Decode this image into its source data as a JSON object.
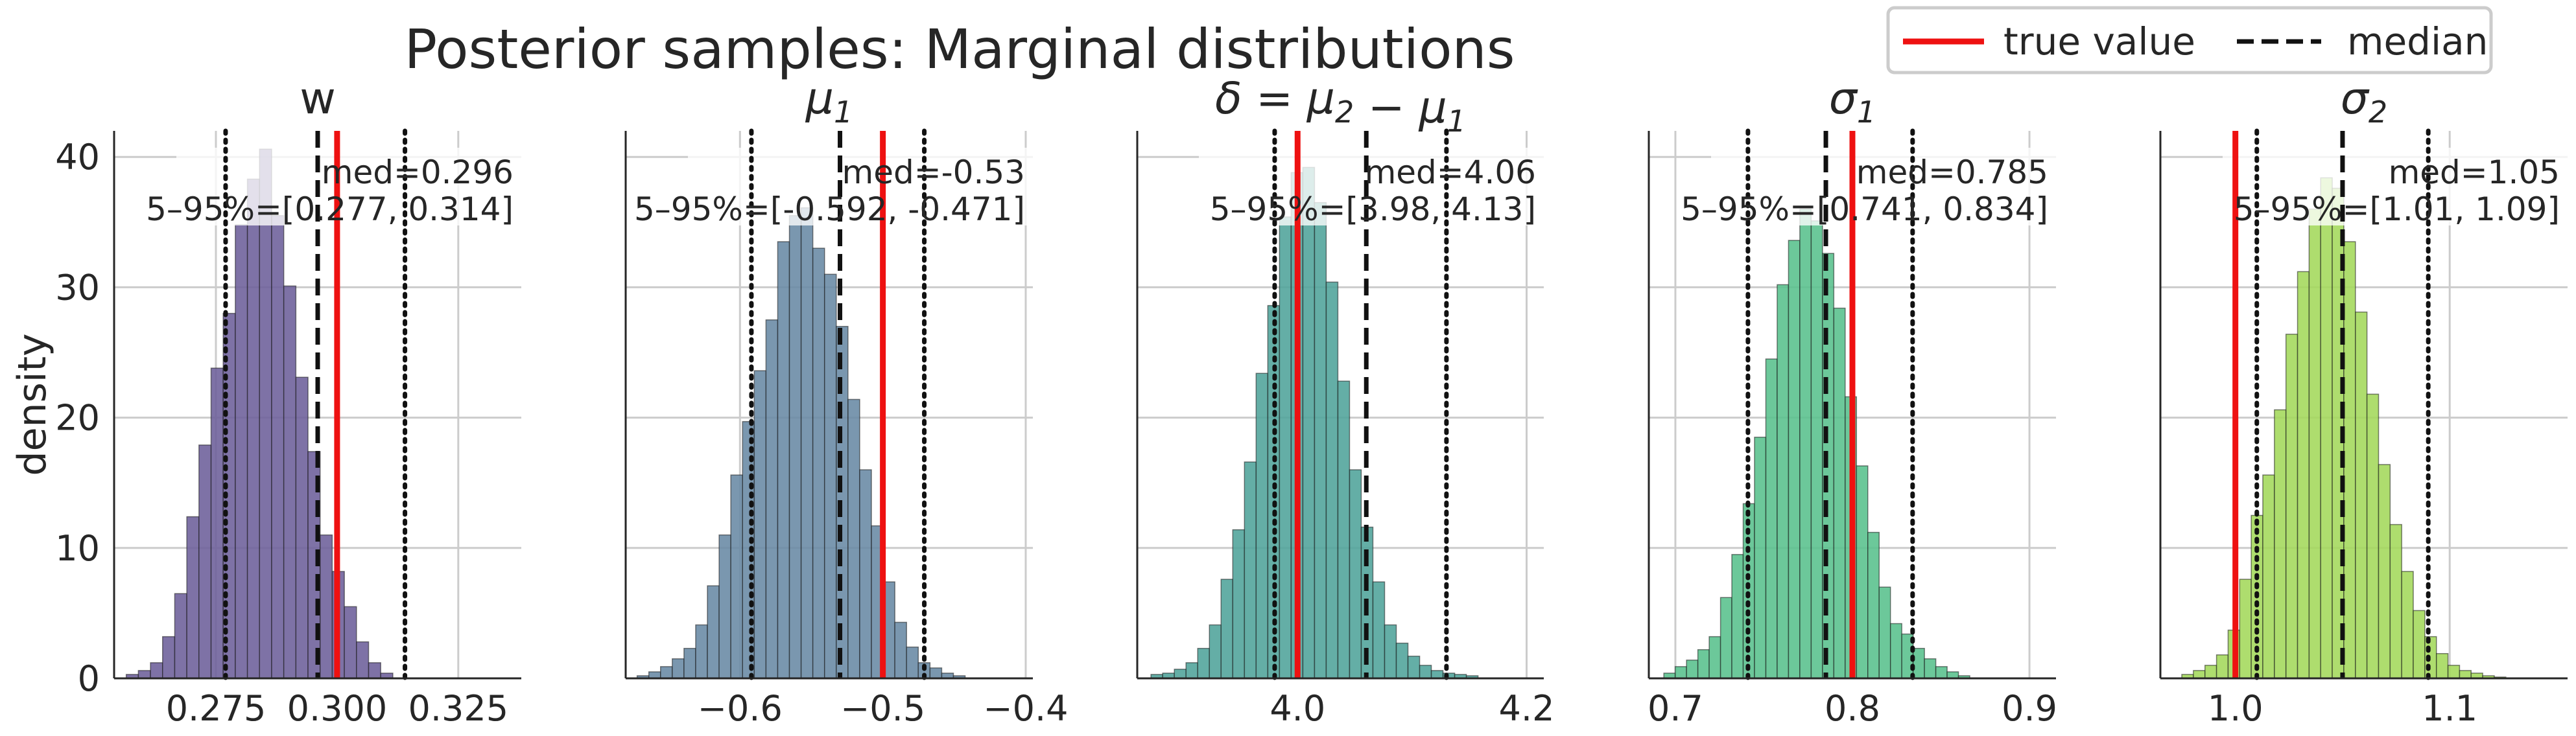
{
  "chart_data": {
    "type": "bar",
    "title": "Posterior samples: Marginal distributions",
    "ylabel": "density",
    "legend": {
      "placement": "top-right",
      "entries": [
        {
          "label": "true value",
          "color": "#ee1111",
          "style": "solid"
        },
        {
          "label": "median",
          "color": "#111111",
          "style": "dashed"
        }
      ]
    },
    "panels": [
      {
        "name": "w",
        "subtitle": "w",
        "color": "#6c5f9a",
        "xlim": [
          0.254,
          0.338
        ],
        "xticks": [
          0.275,
          0.3,
          0.325
        ],
        "xtick_labels": [
          "0.275",
          "0.300",
          "0.325"
        ],
        "true_value": 0.3,
        "median": 0.296,
        "q05": 0.277,
        "q95": 0.314,
        "annotation_med": "med=0.296",
        "annotation_range": "5–95%=[0.277, 0.314]",
        "bin_start": 0.2565,
        "bin_width": 0.0025,
        "densities": [
          0.3,
          0.6,
          1.2,
          3.2,
          6.5,
          12.4,
          17.9,
          23.8,
          28.0,
          34.8,
          38.3,
          40.6,
          35.5,
          30.1,
          23.1,
          17.4,
          11.0,
          8.2,
          5.5,
          2.8,
          1.2,
          0.4
        ]
      },
      {
        "name": "mu1",
        "subtitle": "μ",
        "subtitle_sub": "1",
        "color": "#6889a4",
        "xlim": [
          -0.68,
          -0.395
        ],
        "xticks": [
          -0.6,
          -0.5,
          -0.4
        ],
        "xtick_labels": [
          "−0.6",
          "−0.5",
          "−0.4"
        ],
        "true_value": -0.5,
        "median": -0.53,
        "q05": -0.592,
        "q95": -0.471,
        "annotation_med": "med=-0.53",
        "annotation_range": "5–95%=[-0.592, -0.471]",
        "bin_start": -0.672,
        "bin_width": 0.0082,
        "densities": [
          0.2,
          0.5,
          0.9,
          1.5,
          2.3,
          4.1,
          7.1,
          11.0,
          15.6,
          19.7,
          23.6,
          27.5,
          33.5,
          35.5,
          36.1,
          33.0,
          31.0,
          27.0,
          21.4,
          16.0,
          11.7,
          7.4,
          4.3,
          2.4,
          1.2,
          0.8,
          0.4,
          0.2
        ]
      },
      {
        "name": "delta",
        "subtitle": "δ = μ",
        "subtitle_sub": "2",
        "subtitle_mid": " − μ",
        "subtitle_sub2": "1",
        "color": "#4ea39a",
        "xlim": [
          3.86,
          4.215
        ],
        "xticks": [
          4.0,
          4.2
        ],
        "xtick_labels": [
          "4.0",
          "4.2"
        ],
        "true_value": 4.0,
        "median": 4.06,
        "q05": 3.98,
        "q95": 4.13,
        "annotation_med": "med=4.06",
        "annotation_range": "5–95%=[3.98, 4.13]",
        "bin_start": 3.872,
        "bin_width": 0.0102,
        "densities": [
          0.3,
          0.4,
          0.7,
          1.2,
          2.3,
          4.1,
          7.6,
          11.4,
          16.6,
          23.4,
          28.6,
          35.4,
          38.8,
          39.2,
          36.5,
          30.4,
          22.8,
          16.0,
          11.6,
          7.4,
          4.1,
          2.7,
          1.7,
          1.0,
          0.6,
          0.4,
          0.3,
          0.2
        ]
      },
      {
        "name": "sigma1",
        "subtitle": "σ",
        "subtitle_sub": "1",
        "color": "#58c08c",
        "xlim": [
          0.685,
          0.915
        ],
        "xticks": [
          0.7,
          0.8,
          0.9
        ],
        "xtick_labels": [
          "0.7",
          "0.8",
          "0.9"
        ],
        "true_value": 0.8,
        "median": 0.785,
        "q05": 0.741,
        "q95": 0.834,
        "annotation_med": "med=0.785",
        "annotation_range": "5–95%=[0.741, 0.834]",
        "bin_start": 0.6935,
        "bin_width": 0.0064,
        "densities": [
          0.4,
          0.9,
          1.4,
          2.2,
          3.2,
          6.2,
          9.5,
          13.4,
          18.5,
          24.5,
          30.2,
          33.6,
          36.0,
          35.1,
          32.6,
          28.4,
          21.6,
          16.3,
          11.2,
          7.0,
          4.2,
          3.4,
          2.3,
          1.5,
          0.9,
          0.5,
          0.2
        ]
      },
      {
        "name": "sigma2",
        "subtitle": "σ",
        "subtitle_sub": "2",
        "color": "#a3d85a",
        "xlim": [
          0.965,
          1.155
        ],
        "xticks": [
          1.0,
          1.1
        ],
        "xtick_labels": [
          "1.0",
          "1.1"
        ],
        "true_value": 1.0,
        "median": 1.05,
        "q05": 1.01,
        "q95": 1.09,
        "annotation_med": "med=1.05",
        "annotation_range": "5–95%=[1.01, 1.09]",
        "bin_start": 0.975,
        "bin_width": 0.0054,
        "densities": [
          0.3,
          0.6,
          1.0,
          1.8,
          3.7,
          7.6,
          12.5,
          15.6,
          20.6,
          26.4,
          31.2,
          36.0,
          38.4,
          37.6,
          33.5,
          28.1,
          21.8,
          16.4,
          11.8,
          8.2,
          5.2,
          3.2,
          1.9,
          1.0,
          0.6,
          0.4,
          0.2,
          0.1
        ]
      }
    ],
    "ylim": [
      0,
      42
    ],
    "yticks": [
      0,
      10,
      20,
      30,
      40
    ],
    "grid": true
  }
}
